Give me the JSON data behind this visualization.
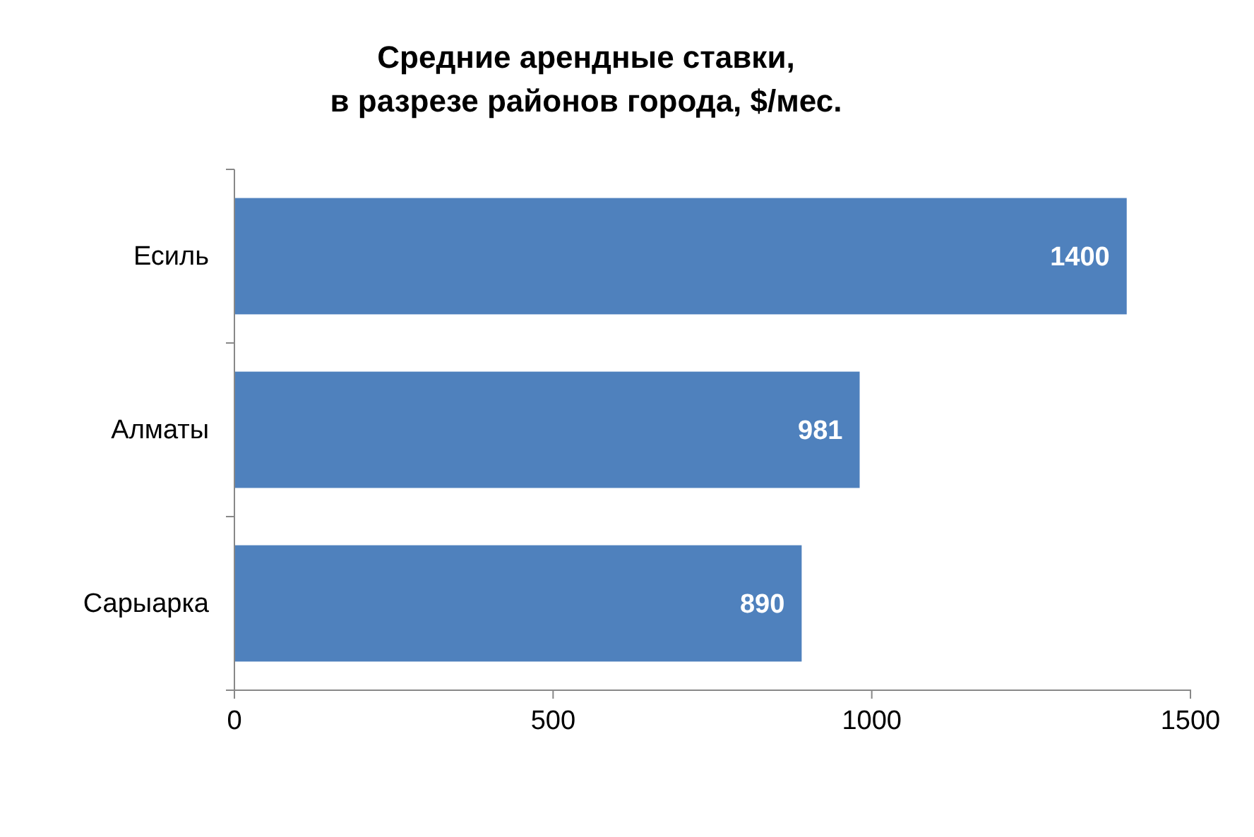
{
  "chart_data": {
    "type": "bar",
    "orientation": "horizontal",
    "title": "Средние арендные ставки,\nв разрезе районов города, $/мес.",
    "categories": [
      "Есиль",
      "Алматы",
      "Сарыарка"
    ],
    "values": [
      1400,
      981,
      890
    ],
    "color": "#4f81bd",
    "xlim": [
      0,
      1500
    ],
    "xticks": [
      0,
      500,
      1000,
      1500
    ],
    "grid": false,
    "data_labels": true
  }
}
